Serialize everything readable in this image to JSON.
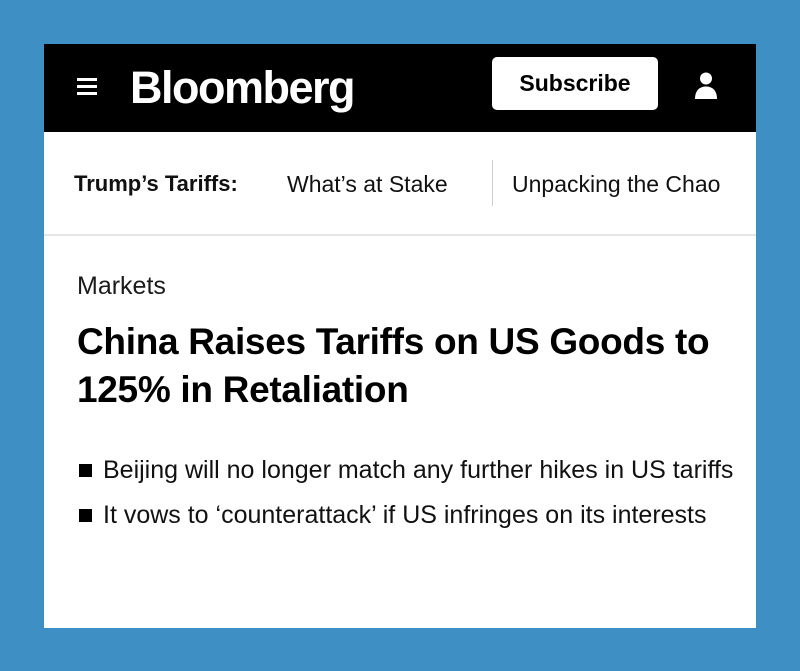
{
  "header": {
    "logo": "Bloomberg",
    "subscribe_label": "Subscribe",
    "menu_icon": "hamburger-menu-icon",
    "user_icon": "user-icon"
  },
  "subnav": {
    "label": "Trump’s Tariffs:",
    "links": [
      "What’s at Stake",
      "Unpacking the Chao"
    ]
  },
  "article": {
    "section": "Markets",
    "headline": "China Raises Tariffs on US Goods to 125% in Retaliation",
    "bullets": [
      "Beijing will no longer match any further hikes in US tariffs",
      "It vows to ‘counterattack’ if US infringes on its interests"
    ]
  },
  "colors": {
    "frame_background": "#3e8fc4",
    "header_background": "#000000",
    "page_background": "#ffffff",
    "text": "#000000"
  }
}
